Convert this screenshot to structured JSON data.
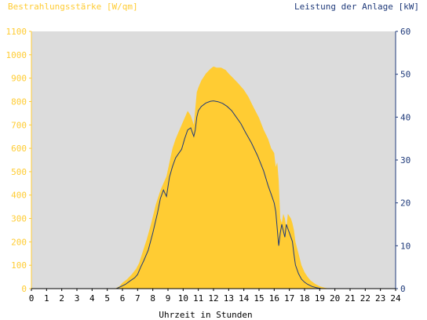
{
  "chart_data": {
    "type": "area",
    "title_left": "Bestrahlungsstärke [W/qm]",
    "title_right": "Leistung der Anlage [kW]",
    "xlabel": "Uhrzeit in Stunden",
    "xlim": [
      0,
      24
    ],
    "ylim_left": [
      0,
      1100
    ],
    "ylim_right": [
      0,
      60
    ],
    "x_ticks": [
      "0",
      "1",
      "2",
      "3",
      "4",
      "5",
      "6",
      "7",
      "8",
      "9",
      "10",
      "11",
      "12",
      "13",
      "14",
      "15",
      "16",
      "17",
      "18",
      "19",
      "20",
      "21",
      "22",
      "23",
      "24"
    ],
    "y_ticks_left": [
      "0",
      "100",
      "200",
      "300",
      "400",
      "500",
      "600",
      "700",
      "800",
      "900",
      "1000",
      "1100"
    ],
    "y_ticks_right": [
      "0",
      "10",
      "20",
      "30",
      "40",
      "50",
      "60"
    ],
    "grid": false,
    "colors": {
      "plot_background": "#dcdcdc",
      "irradiance_fill": "#ffcc33",
      "power_line": "#1f3a7a",
      "left_axis": "#ffcc33",
      "right_axis": "#1f3a7a"
    },
    "series": [
      {
        "name": "Bestrahlungsstärke",
        "unit": "W/qm",
        "axis": "left",
        "x": [
          0,
          5.5,
          5.8,
          6.0,
          6.3,
          6.6,
          6.9,
          7.1,
          7.3,
          7.6,
          7.9,
          8.2,
          8.5,
          8.7,
          8.9,
          9.1,
          9.3,
          9.5,
          9.7,
          9.9,
          10.1,
          10.3,
          10.5,
          10.7,
          10.9,
          11.0,
          11.2,
          11.5,
          11.8,
          12.0,
          12.2,
          12.5,
          12.8,
          13.0,
          13.3,
          13.6,
          14.0,
          14.3,
          14.6,
          15.0,
          15.3,
          15.6,
          15.8,
          16.0,
          16.1,
          16.2,
          16.3,
          16.4,
          16.5,
          16.6,
          16.7,
          16.8,
          16.9,
          17.0,
          17.1,
          17.2,
          17.3,
          17.4,
          17.6,
          17.8,
          18.0,
          18.2,
          18.4,
          18.7,
          19.0,
          19.3,
          19.6,
          24
        ],
        "values": [
          0,
          0,
          10,
          25,
          40,
          60,
          85,
          110,
          150,
          210,
          280,
          360,
          420,
          450,
          480,
          540,
          600,
          640,
          670,
          700,
          730,
          760,
          740,
          700,
          840,
          860,
          890,
          920,
          940,
          950,
          945,
          945,
          935,
          920,
          900,
          880,
          850,
          820,
          780,
          730,
          680,
          640,
          600,
          580,
          520,
          540,
          460,
          300,
          280,
          320,
          300,
          260,
          320,
          310,
          300,
          280,
          250,
          200,
          150,
          100,
          70,
          50,
          35,
          20,
          10,
          4,
          0,
          0
        ]
      },
      {
        "name": "Leistung",
        "unit": "kW",
        "axis": "right",
        "x": [
          0,
          5.6,
          5.9,
          6.2,
          6.5,
          6.8,
          7.0,
          7.2,
          7.4,
          7.7,
          8.0,
          8.3,
          8.5,
          8.7,
          8.9,
          9.1,
          9.3,
          9.5,
          9.7,
          9.9,
          10.1,
          10.3,
          10.5,
          10.6,
          10.7,
          10.8,
          10.9,
          11.0,
          11.2,
          11.5,
          11.8,
          12.0,
          12.3,
          12.6,
          12.9,
          13.2,
          13.5,
          13.8,
          14.1,
          14.5,
          14.9,
          15.3,
          15.6,
          15.8,
          16.0,
          16.1,
          16.2,
          16.3,
          16.4,
          16.5,
          16.6,
          16.7,
          16.8,
          16.9,
          17.0,
          17.1,
          17.2,
          17.3,
          17.4,
          17.6,
          17.8,
          18.0,
          18.2,
          18.5,
          18.8,
          19.1,
          19.4,
          24
        ],
        "values": [
          0,
          0,
          0.5,
          1.0,
          1.8,
          2.5,
          3.3,
          5.0,
          6.5,
          9.0,
          13.0,
          17.5,
          21.0,
          23.0,
          21.5,
          26.0,
          28.5,
          30.5,
          31.5,
          32.5,
          35.0,
          37.0,
          37.5,
          36.5,
          35.5,
          37.0,
          40.0,
          41.5,
          42.5,
          43.3,
          43.7,
          43.8,
          43.6,
          43.2,
          42.5,
          41.5,
          40.0,
          38.5,
          36.5,
          34.0,
          31.0,
          27.5,
          24.0,
          22.0,
          20.0,
          18.0,
          14.0,
          10.0,
          13.0,
          15.0,
          13.5,
          12.0,
          15.0,
          14.0,
          13.0,
          12.0,
          11.0,
          8.0,
          5.5,
          3.5,
          2.2,
          1.5,
          1.0,
          0.5,
          0.2,
          0,
          0,
          0
        ]
      }
    ]
  }
}
